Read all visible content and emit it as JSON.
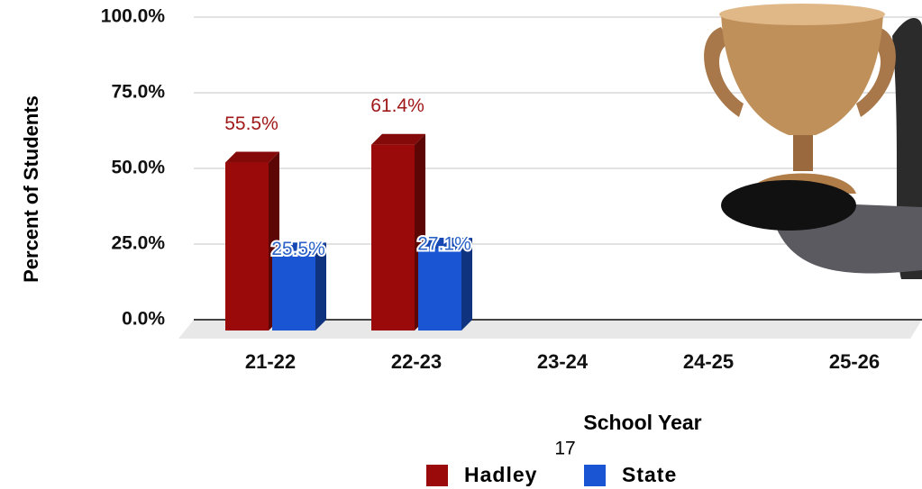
{
  "chart_data": {
    "type": "bar",
    "y_axis_label": "Percent of Students",
    "x_axis_label": "School Year",
    "annotation": "17",
    "categories": [
      "21-22",
      "22-23",
      "23-24",
      "24-25",
      "25-26"
    ],
    "series": [
      {
        "name": "Hadley",
        "color": "#9b0a0a",
        "values": [
          55.5,
          61.4,
          null,
          null,
          null
        ],
        "value_labels": [
          "55.5%",
          "61.4%",
          null,
          null,
          null
        ]
      },
      {
        "name": "State",
        "color": "#1a55d4",
        "values": [
          25.5,
          27.1,
          null,
          null,
          null
        ],
        "value_labels": [
          "25.5%",
          "27.1%",
          null,
          null,
          null
        ]
      }
    ],
    "ylim": [
      0,
      100
    ],
    "yticks": [
      {
        "value": 0,
        "label": "0.0%"
      },
      {
        "value": 25,
        "label": "25.0%"
      },
      {
        "value": 50,
        "label": "50.0%"
      },
      {
        "value": 75,
        "label": "75.0%"
      },
      {
        "value": 100,
        "label": "100.0%"
      }
    ],
    "grid": true
  }
}
